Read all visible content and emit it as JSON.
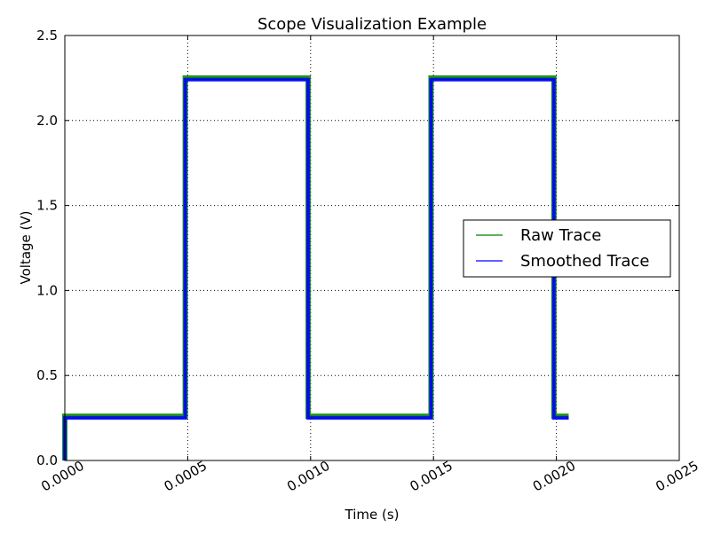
{
  "chart_data": {
    "type": "line",
    "title": "Scope Visualization Example",
    "xlabel": "Time (s)",
    "ylabel": "Voltage (V)",
    "xlim": [
      0,
      0.0025
    ],
    "ylim": [
      0,
      2.5
    ],
    "xticks": [
      "0.0000",
      "0.0005",
      "0.0010",
      "0.0015",
      "0.0020",
      "0.0025"
    ],
    "xtick_values": [
      0,
      0.0005,
      0.001,
      0.0015,
      0.002,
      0.0025
    ],
    "yticks": [
      "0.0",
      "0.5",
      "1.0",
      "1.5",
      "2.0",
      "2.5"
    ],
    "ytick_values": [
      0,
      0.5,
      1.0,
      1.5,
      2.0,
      2.5
    ],
    "grid": true,
    "legend_position": "center-right",
    "series": [
      {
        "name": "Raw Trace",
        "color": "#008000",
        "x": [
          0,
          0,
          0.00049,
          0.00049,
          0.00099,
          0.00099,
          0.00149,
          0.00149,
          0.00199,
          0.00199,
          0.00205
        ],
        "y": [
          0,
          0.26,
          0.26,
          2.25,
          2.25,
          0.26,
          0.26,
          2.25,
          2.25,
          0.26,
          0.26
        ]
      },
      {
        "name": "Smoothed Trace",
        "color": "#0000ff",
        "x": [
          0,
          0,
          0.00049,
          0.00049,
          0.00099,
          0.00099,
          0.00149,
          0.00149,
          0.00199,
          0.00199,
          0.00205
        ],
        "y": [
          0,
          0.25,
          0.25,
          2.24,
          2.24,
          0.25,
          0.25,
          2.24,
          2.24,
          0.25,
          0.25
        ]
      }
    ]
  }
}
